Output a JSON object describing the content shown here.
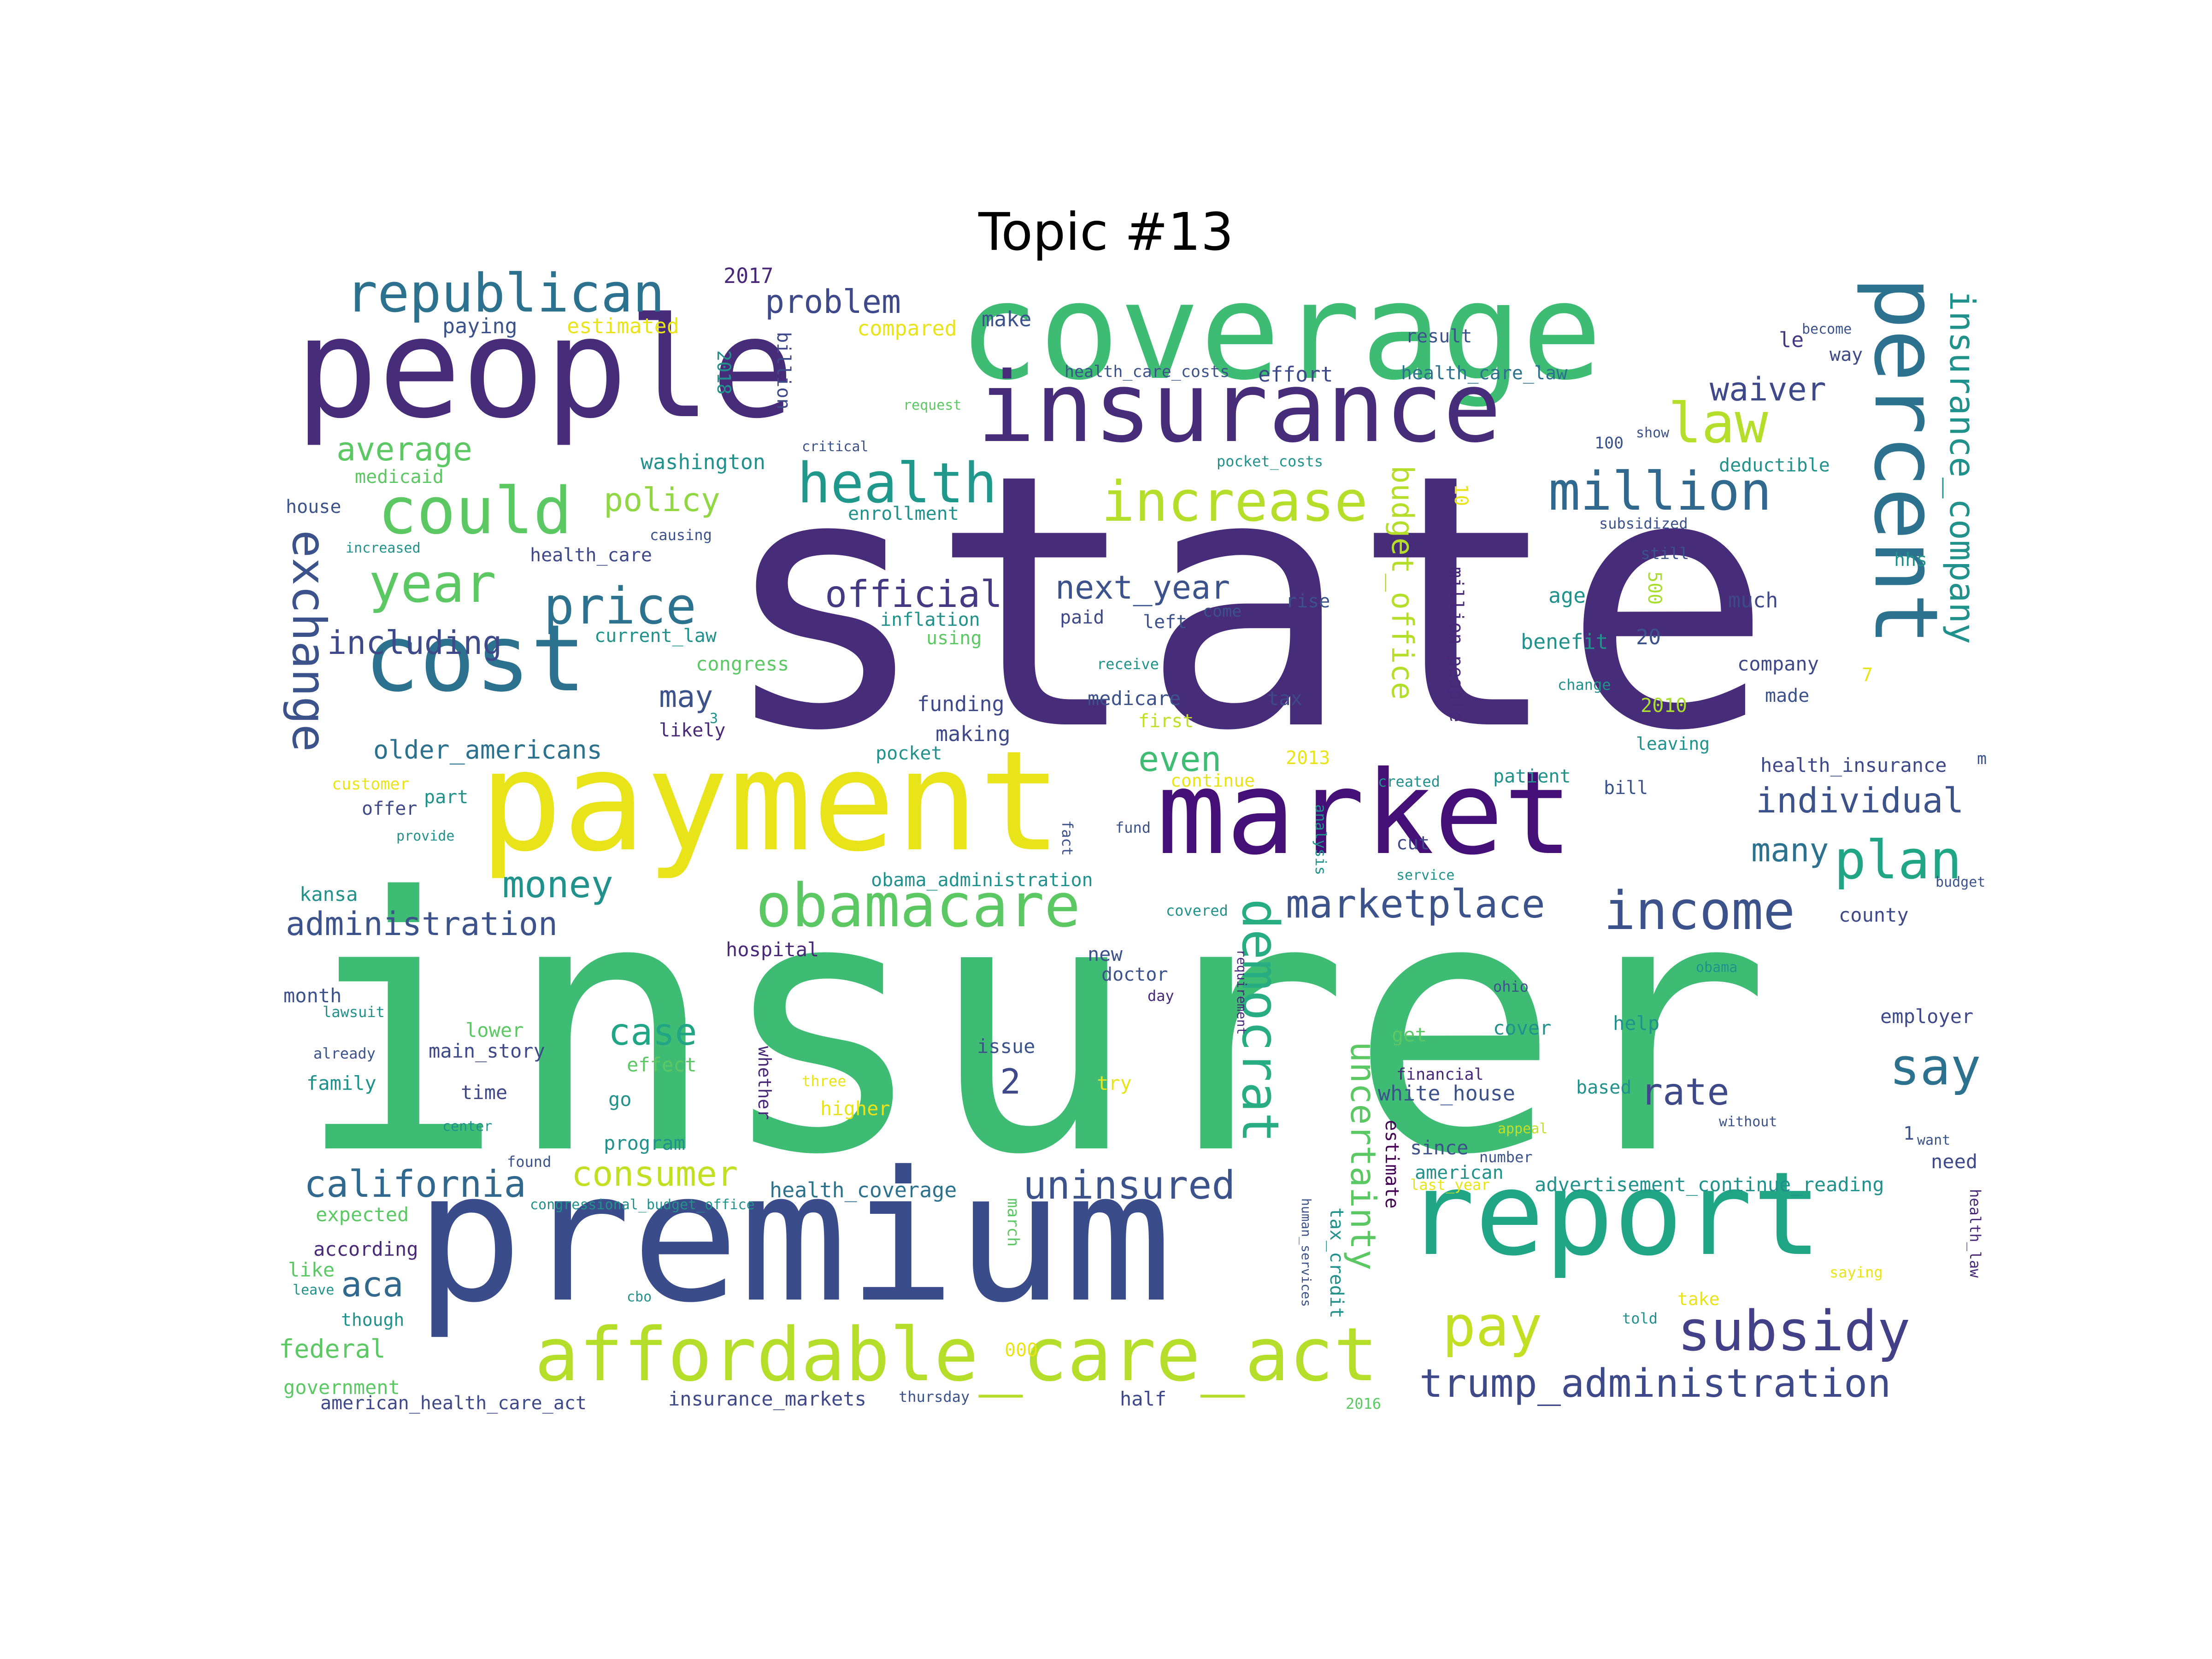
{
  "title": "Topic #13",
  "palette": [
    "#440154",
    "#472c7a",
    "#3b518b",
    "#2c718e",
    "#21908d",
    "#27ad81",
    "#5cc863",
    "#aadc32",
    "#e8e419"
  ],
  "words": [
    {
      "text": "state",
      "c": "#472c7a"
    },
    {
      "text": "insurer",
      "c": "#3fbc73"
    },
    {
      "text": "premium",
      "c": "#3b4c8a"
    },
    {
      "text": "payment",
      "c": "#e8e419"
    },
    {
      "text": "coverage",
      "c": "#3fbc73"
    },
    {
      "text": "people",
      "c": "#472c7a"
    },
    {
      "text": "market",
      "c": "#440f76"
    },
    {
      "text": "report",
      "c": "#21a685"
    },
    {
      "text": "insurance",
      "c": "#472c7a"
    },
    {
      "text": "cost",
      "c": "#2c718e"
    },
    {
      "text": "percent",
      "c": "#2c728e"
    },
    {
      "text": "affordable_care_act",
      "c": "#b5de2b"
    },
    {
      "text": "obamacare",
      "c": "#5cc863"
    },
    {
      "text": "subsidy",
      "c": "#424086"
    },
    {
      "text": "could",
      "c": "#5cc863"
    },
    {
      "text": "republican",
      "c": "#2c728e"
    },
    {
      "text": "health",
      "c": "#1f988b"
    },
    {
      "text": "increase",
      "c": "#b5de2b"
    },
    {
      "text": "million",
      "c": "#31688e"
    },
    {
      "text": "income",
      "c": "#3b528b"
    },
    {
      "text": "plan",
      "c": "#21a685"
    },
    {
      "text": "law",
      "c": "#b5de2b"
    },
    {
      "text": "pay",
      "c": "#c2df23"
    },
    {
      "text": "price",
      "c": "#2c728e"
    },
    {
      "text": "year",
      "c": "#5cc863"
    },
    {
      "text": "marketplace",
      "c": "#3b528b"
    },
    {
      "text": "democrat",
      "c": "#27ad81"
    },
    {
      "text": "exchange",
      "c": "#3b528b"
    },
    {
      "text": "insurance_company",
      "c": "#21918c"
    },
    {
      "text": "trump_administration",
      "c": "#3e4989"
    },
    {
      "text": "say",
      "c": "#2c728e"
    },
    {
      "text": "money",
      "c": "#21918c"
    },
    {
      "text": "uninsured",
      "c": "#3b528b"
    },
    {
      "text": "california",
      "c": "#31688e"
    },
    {
      "text": "rate",
      "c": "#3e4989"
    },
    {
      "text": "uncertainty",
      "c": "#5cc863"
    },
    {
      "text": "consumer",
      "c": "#c2df23"
    },
    {
      "text": "administration",
      "c": "#3b528b"
    },
    {
      "text": "official",
      "c": "#443983"
    },
    {
      "text": "budget_office",
      "c": "#b5de2b"
    },
    {
      "text": "individual",
      "c": "#3b528b"
    },
    {
      "text": "waiver",
      "c": "#3e4989"
    },
    {
      "text": "problem",
      "c": "#3e4989"
    },
    {
      "text": "case",
      "c": "#21a685"
    },
    {
      "text": "including",
      "c": "#3e4989"
    },
    {
      "text": "next_year",
      "c": "#3b528b"
    },
    {
      "text": "policy",
      "c": "#90d743"
    },
    {
      "text": "average",
      "c": "#5cc863"
    },
    {
      "text": "even",
      "c": "#3fbc73"
    },
    {
      "text": "many",
      "c": "#2c728e"
    },
    {
      "text": "aca",
      "c": "#31688e"
    },
    {
      "text": "older_americans",
      "c": "#2c728e"
    },
    {
      "text": "may",
      "c": "#3b528b"
    },
    {
      "text": "2",
      "c": "#3e4989"
    },
    {
      "text": "federal",
      "c": "#5cc863"
    },
    {
      "text": "health_coverage",
      "c": "#2c728e"
    },
    {
      "text": "white_house",
      "c": "#3b528b"
    },
    {
      "text": "million_people",
      "c": "#482878"
    },
    {
      "text": "tax_credit",
      "c": "#21918c"
    },
    {
      "text": "estimate",
      "c": "#440154"
    },
    {
      "text": "compared",
      "c": "#e8e419"
    },
    {
      "text": "estimated",
      "c": "#e8e419"
    },
    {
      "text": "paying",
      "c": "#3b528b"
    },
    {
      "text": "2017",
      "c": "#482878"
    },
    {
      "text": "make",
      "c": "#3b528b"
    },
    {
      "text": "billion",
      "c": "#3e4989"
    },
    {
      "text": "2018",
      "c": "#21918c"
    },
    {
      "text": "health_care_costs",
      "c": "#3b528b"
    },
    {
      "text": "effort",
      "c": "#3e4989"
    },
    {
      "text": "health_care_law",
      "c": "#2c728e"
    },
    {
      "text": "result",
      "c": "#3b528b"
    },
    {
      "text": "le",
      "c": "#443983"
    },
    {
      "text": "become",
      "c": "#3b528b"
    },
    {
      "text": "way",
      "c": "#3e4989"
    },
    {
      "text": "request",
      "c": "#5cc863"
    },
    {
      "text": "critical",
      "c": "#3b528b"
    },
    {
      "text": "washington",
      "c": "#21918c"
    },
    {
      "text": "medicaid",
      "c": "#5cc863"
    },
    {
      "text": "pocket_costs",
      "c": "#21918c"
    },
    {
      "text": "100",
      "c": "#3b528b"
    },
    {
      "text": "show",
      "c": "#3b528b"
    },
    {
      "text": "deductible",
      "c": "#21918c"
    },
    {
      "text": "house",
      "c": "#3b528b"
    },
    {
      "text": "enrollment",
      "c": "#21918c"
    },
    {
      "text": "10",
      "c": "#e8e419"
    },
    {
      "text": "causing",
      "c": "#3b528b"
    },
    {
      "text": "subsidized",
      "c": "#3b528b"
    },
    {
      "text": "increased",
      "c": "#21918c"
    },
    {
      "text": "health_care",
      "c": "#3e4989"
    },
    {
      "text": "still",
      "c": "#3b528b"
    },
    {
      "text": "hhs",
      "c": "#21918c"
    },
    {
      "text": "500",
      "c": "#aadc32"
    },
    {
      "text": "age",
      "c": "#21918c"
    },
    {
      "text": "much",
      "c": "#3e4989"
    },
    {
      "text": "rise",
      "c": "#3b528b"
    },
    {
      "text": "come",
      "c": "#3b528b"
    },
    {
      "text": "inflation",
      "c": "#21918c"
    },
    {
      "text": "paid",
      "c": "#3e4989"
    },
    {
      "text": "left",
      "c": "#3b528b"
    },
    {
      "text": "current_law",
      "c": "#21918c"
    },
    {
      "text": "using",
      "c": "#5cc863"
    },
    {
      "text": "benefit",
      "c": "#21918c"
    },
    {
      "text": "20",
      "c": "#3b528b"
    },
    {
      "text": "congress",
      "c": "#5cc863"
    },
    {
      "text": "receive",
      "c": "#21918c"
    },
    {
      "text": "company",
      "c": "#3e4989"
    },
    {
      "text": "change",
      "c": "#21918c"
    },
    {
      "text": "7",
      "c": "#e8e419"
    },
    {
      "text": "made",
      "c": "#3b528b"
    },
    {
      "text": "funding",
      "c": "#3e4989"
    },
    {
      "text": "medicare",
      "c": "#3b528b"
    },
    {
      "text": "tax",
      "c": "#3e4989"
    },
    {
      "text": "2010",
      "c": "#aadc32"
    },
    {
      "text": "first",
      "c": "#c2df23"
    },
    {
      "text": "likely",
      "c": "#482878"
    },
    {
      "text": "making",
      "c": "#3e4989"
    },
    {
      "text": "leaving",
      "c": "#21918c"
    },
    {
      "text": "pocket",
      "c": "#21918c"
    },
    {
      "text": "3",
      "c": "#21918c"
    },
    {
      "text": "2013",
      "c": "#e8e419"
    },
    {
      "text": "customer",
      "c": "#e8e419"
    },
    {
      "text": "part",
      "c": "#21918c"
    },
    {
      "text": "continue",
      "c": "#e8e419"
    },
    {
      "text": "created",
      "c": "#21918c"
    },
    {
      "text": "patient",
      "c": "#21918c"
    },
    {
      "text": "health_insurance",
      "c": "#3e4989"
    },
    {
      "text": "m",
      "c": "#3b528b"
    },
    {
      "text": "offer",
      "c": "#3e4989"
    },
    {
      "text": "bill",
      "c": "#3b528b"
    },
    {
      "text": "provide",
      "c": "#21918c"
    },
    {
      "text": "fact",
      "c": "#3b528b"
    },
    {
      "text": "fund",
      "c": "#3b528b"
    },
    {
      "text": "analysis",
      "c": "#21918c"
    },
    {
      "text": "cut",
      "c": "#3e4989"
    },
    {
      "text": "service",
      "c": "#21918c"
    },
    {
      "text": "budget",
      "c": "#3b528b"
    },
    {
      "text": "kansa",
      "c": "#21918c"
    },
    {
      "text": "obama_administration",
      "c": "#21918c"
    },
    {
      "text": "covered",
      "c": "#21918c"
    },
    {
      "text": "county",
      "c": "#3e4989"
    },
    {
      "text": "hospital",
      "c": "#482878"
    },
    {
      "text": "new",
      "c": "#3b528b"
    },
    {
      "text": "obama",
      "c": "#21918c"
    },
    {
      "text": "ohio",
      "c": "#3b528b"
    },
    {
      "text": "month",
      "c": "#3b528b"
    },
    {
      "text": "doctor",
      "c": "#3b528b"
    },
    {
      "text": "day",
      "c": "#482878"
    },
    {
      "text": "lawsuit",
      "c": "#21918c"
    },
    {
      "text": "requirement",
      "c": "#482878"
    },
    {
      "text": "employer",
      "c": "#3e4989"
    },
    {
      "text": "lower",
      "c": "#5cc863"
    },
    {
      "text": "already",
      "c": "#3b528b"
    },
    {
      "text": "main_story",
      "c": "#3e4989"
    },
    {
      "text": "issue",
      "c": "#3b528b"
    },
    {
      "text": "help",
      "c": "#21918c"
    },
    {
      "text": "effect",
      "c": "#5cc863"
    },
    {
      "text": "whether",
      "c": "#482878"
    },
    {
      "text": "family",
      "c": "#21918c"
    },
    {
      "text": "three",
      "c": "#e8e419"
    },
    {
      "text": "try",
      "c": "#e8e419"
    },
    {
      "text": "get",
      "c": "#5cc863"
    },
    {
      "text": "cover",
      "c": "#21918c"
    },
    {
      "text": "financial",
      "c": "#482878"
    },
    {
      "text": "based",
      "c": "#21918c"
    },
    {
      "text": "time",
      "c": "#3e4989"
    },
    {
      "text": "go",
      "c": "#21918c"
    },
    {
      "text": "higher",
      "c": "#e8e419"
    },
    {
      "text": "without",
      "c": "#3b528b"
    },
    {
      "text": "center",
      "c": "#21918c"
    },
    {
      "text": "appeal",
      "c": "#c2df23"
    },
    {
      "text": "1",
      "c": "#3b528b"
    },
    {
      "text": "want",
      "c": "#3b528b"
    },
    {
      "text": "program",
      "c": "#21918c"
    },
    {
      "text": "since",
      "c": "#3b528b"
    },
    {
      "text": "number",
      "c": "#3b528b"
    },
    {
      "text": "need",
      "c": "#3e4989"
    },
    {
      "text": "found",
      "c": "#3b528b"
    },
    {
      "text": "american",
      "c": "#21918c"
    },
    {
      "text": "last_year",
      "c": "#e8e419"
    },
    {
      "text": "advertisement_continue_reading",
      "c": "#21918c"
    },
    {
      "text": "congressional_budget_office",
      "c": "#21918c"
    },
    {
      "text": "expected",
      "c": "#5cc863"
    },
    {
      "text": "march",
      "c": "#5cc863"
    },
    {
      "text": "according",
      "c": "#482878"
    },
    {
      "text": "like",
      "c": "#5cc863"
    },
    {
      "text": "human_services",
      "c": "#3b528b"
    },
    {
      "text": "health_law",
      "c": "#482878"
    },
    {
      "text": "leave",
      "c": "#21918c"
    },
    {
      "text": "cbo",
      "c": "#21918c"
    },
    {
      "text": "told",
      "c": "#21918c"
    },
    {
      "text": "saying",
      "c": "#e8e419"
    },
    {
      "text": "take",
      "c": "#e8e419"
    },
    {
      "text": "though",
      "c": "#21918c"
    },
    {
      "text": "000",
      "c": "#e8e419"
    },
    {
      "text": "government",
      "c": "#5cc863"
    },
    {
      "text": "american_health_care_act",
      "c": "#3e4989"
    },
    {
      "text": "insurance_markets",
      "c": "#3e4989"
    },
    {
      "text": "thursday",
      "c": "#3b528b"
    },
    {
      "text": "half",
      "c": "#3e4989"
    },
    {
      "text": "2016",
      "c": "#5cc863"
    }
  ]
}
